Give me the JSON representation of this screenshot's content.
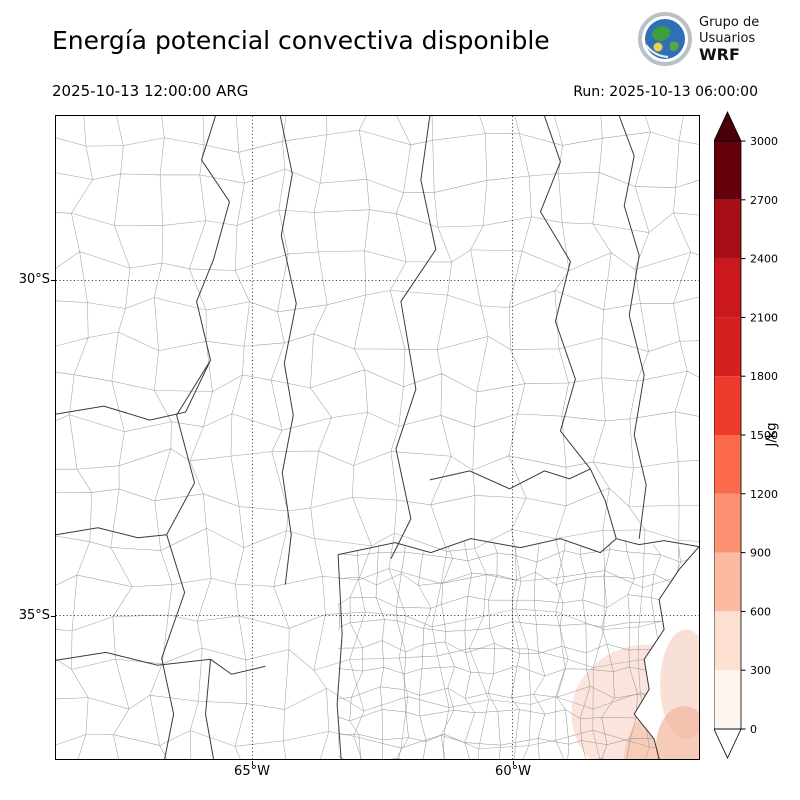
{
  "header": {
    "title": "Energía potencial convectiva disponible",
    "valid_time": "2025-10-13 12:00:00 ARG",
    "run_label": "Run: 2025-10-13 06:00:00",
    "logo": {
      "line1": "Grupo de",
      "line2": "Usuarios",
      "line3": "WRF"
    }
  },
  "map": {
    "lat_ticks": [
      "30°S",
      "35°S"
    ],
    "lon_ticks": [
      "65°W",
      "60°W"
    ]
  },
  "colorbar": {
    "unit": "J/kg",
    "ticks": [
      "0",
      "300",
      "600",
      "900",
      "1200",
      "1500",
      "1800",
      "2100",
      "2400",
      "2700",
      "3000"
    ],
    "segment_colors": [
      "#fff5f0",
      "#fee0d2",
      "#fcbba1",
      "#fc9272",
      "#fb6a4a",
      "#ef3b2c",
      "#d42020",
      "#cb181d",
      "#a50f15",
      "#67000d"
    ],
    "over_color": "#4a000b",
    "under_color": "#ffffff"
  },
  "chart_data": {
    "type": "heatmap",
    "title": "Energía potencial convectiva disponible",
    "colorbar_unit": "J/kg",
    "colorbar_range": [
      0,
      3000
    ],
    "colorbar_ticks": [
      0,
      300,
      600,
      900,
      1200,
      1500,
      1800,
      2100,
      2400,
      2700,
      3000
    ],
    "lat_gridlines": [
      "30°S",
      "35°S"
    ],
    "lon_gridlines": [
      "65°W",
      "60°W"
    ],
    "notes": "CAPE near 0 over most of the mapped region; weak values (~0-600 J/kg) shaded along the Atlantic coast in the southeast corner of the map"
  }
}
